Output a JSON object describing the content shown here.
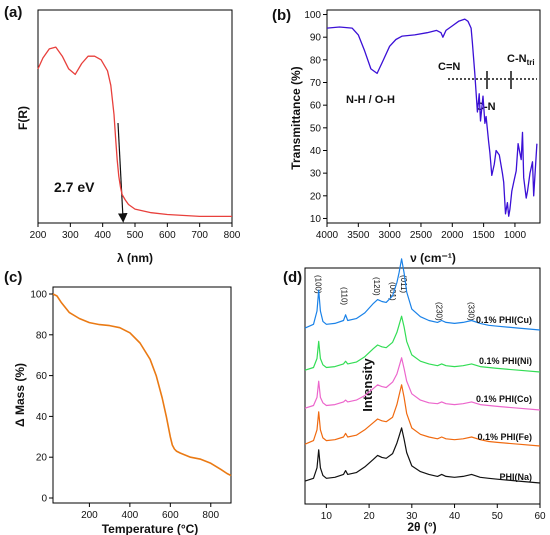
{
  "colors": {
    "panel_a": "#e8403c",
    "panel_b": "#3b10d6",
    "panel_c": "#ea7a14",
    "panel_d": [
      "#1a82e8",
      "#33dd55",
      "#ec66cc",
      "#f06a10",
      "#111111"
    ]
  },
  "panels": {
    "a": {
      "label": "(a)",
      "xlabel": "λ (nm)",
      "ylabel": "F(R)",
      "xticks": [
        "200",
        "300",
        "400",
        "500",
        "600",
        "700",
        "800"
      ],
      "annotation": "2.7 eV"
    },
    "b": {
      "label": "(b)",
      "xlabel": "ν (cm⁻¹)",
      "ylabel": "Transmittance (%)",
      "xticks": [
        "4000",
        "3500",
        "3000",
        "2500",
        "2000",
        "1500",
        "1000"
      ],
      "yticks": [
        "10",
        "20",
        "30",
        "40",
        "50",
        "60",
        "70",
        "80",
        "90",
        "100"
      ],
      "ann_nh_oh": "N-H / O-H",
      "ann_cn_double": "C=N",
      "ann_cn": "C-N",
      "ann_cntri_main": "C-N",
      "ann_cntri_sub": "tri"
    },
    "c": {
      "label": "(c)",
      "xlabel": "Temperature (°C)",
      "ylabel": "Δ Mass (%)",
      "xticks": [
        "200",
        "400",
        "600",
        "800"
      ],
      "yticks": [
        "0",
        "20",
        "40",
        "60",
        "80",
        "100"
      ]
    },
    "d": {
      "label": "(d)",
      "xlabel": "2θ (°)",
      "ylabel": "Intensity",
      "xticks": [
        "10",
        "20",
        "30",
        "40",
        "50",
        "60"
      ],
      "peaks": [
        "(100)",
        "(110)",
        "(120)",
        "(001)",
        "(011)",
        "(230)",
        "(330)"
      ],
      "legend": [
        "0.1% PHI(Cu)",
        "0.1% PHI(Ni)",
        "0.1% PHI(Co)",
        "0.1% PHI(Fe)",
        "PHI(Na)"
      ]
    }
  },
  "chart_data": [
    {
      "type": "line",
      "panel": "a",
      "xlabel": "λ (nm)",
      "ylabel": "F(R)",
      "xlim": [
        200,
        800
      ],
      "x": [
        200,
        215,
        235,
        255,
        275,
        295,
        315,
        335,
        355,
        375,
        395,
        415,
        425,
        435,
        440,
        445,
        450,
        455,
        460,
        470,
        480,
        500,
        550,
        600,
        700,
        800
      ],
      "y": [
        0.83,
        0.89,
        0.94,
        0.95,
        0.9,
        0.83,
        0.8,
        0.86,
        0.9,
        0.9,
        0.88,
        0.82,
        0.74,
        0.58,
        0.45,
        0.33,
        0.24,
        0.18,
        0.14,
        0.11,
        0.085,
        0.06,
        0.04,
        0.03,
        0.02,
        0.02
      ],
      "annotation": "2.7 eV"
    },
    {
      "type": "line",
      "panel": "b",
      "xlabel": "ν (cm⁻¹)",
      "ylabel": "Transmittance (%)",
      "xlim": [
        4000,
        600
      ],
      "ylim": [
        8,
        102
      ],
      "x": [
        4000,
        3800,
        3600,
        3500,
        3400,
        3300,
        3200,
        3100,
        3000,
        2900,
        2800,
        2600,
        2400,
        2250,
        2180,
        2150,
        2100,
        2000,
        1900,
        1800,
        1750,
        1700,
        1680,
        1640,
        1600,
        1570,
        1550,
        1510,
        1480,
        1460,
        1420,
        1400,
        1370,
        1330,
        1300,
        1250,
        1200,
        1180,
        1150,
        1120,
        1100,
        1080,
        1050,
        1020,
        980,
        950,
        900,
        880,
        860,
        820,
        800,
        760,
        720,
        700,
        650
      ],
      "y": [
        94,
        94.5,
        94,
        91,
        84,
        76,
        74,
        80,
        86,
        89,
        90.5,
        91,
        92,
        93,
        92,
        90,
        93,
        95,
        97,
        98,
        97,
        94,
        88,
        74,
        57,
        65,
        53,
        64,
        52,
        55,
        44,
        39,
        29,
        34,
        40,
        38,
        30,
        26,
        12,
        17,
        11,
        14,
        22,
        26,
        31,
        43,
        36,
        48,
        28,
        19,
        22,
        30,
        35,
        20,
        43
      ],
      "annotations": [
        "N-H / O-H",
        "C=N",
        "C-N",
        "C-Ntri"
      ]
    },
    {
      "type": "line",
      "panel": "c",
      "xlabel": "Temperature (°C)",
      "ylabel": "Δ Mass (%)",
      "xlim": [
        20,
        900
      ],
      "ylim": [
        0,
        100
      ],
      "x": [
        20,
        40,
        60,
        100,
        150,
        200,
        250,
        300,
        350,
        400,
        450,
        500,
        530,
        560,
        580,
        600,
        610,
        620,
        630,
        650,
        700,
        750,
        800,
        850,
        880,
        900
      ],
      "y": [
        100,
        99,
        96,
        91,
        88,
        86,
        85,
        84.5,
        83.5,
        81,
        76,
        68,
        60,
        49,
        40,
        30,
        26,
        24,
        23,
        22,
        20,
        19,
        17,
        14,
        12,
        11
      ]
    },
    {
      "type": "line",
      "panel": "d",
      "xlabel": "2θ (°)",
      "ylabel": "Intensity",
      "xlim": [
        5,
        60
      ],
      "x": [
        5,
        7,
        7.8,
        8.2,
        8.6,
        9.2,
        10,
        12,
        14,
        14.5,
        15,
        17,
        19,
        21,
        22,
        23,
        24,
        25.5,
        26.5,
        27,
        27.6,
        28.2,
        28.8,
        30,
        32,
        34,
        36,
        37,
        38,
        40,
        42,
        44,
        46,
        48,
        50,
        55,
        60
      ],
      "series": [
        {
          "name": "0.1% PHI(Cu)",
          "y": [
            0.2,
            0.6,
            2.0,
            4.2,
            2.0,
            0.9,
            0.6,
            0.7,
            1.0,
            1.6,
            1.0,
            1.2,
            1.8,
            2.8,
            3.2,
            3.0,
            2.9,
            3.6,
            5.0,
            6.0,
            7.5,
            6.0,
            4.0,
            2.2,
            1.4,
            1.0,
            0.8,
            1.0,
            0.8,
            0.7,
            0.8,
            1.0,
            0.7,
            0.5,
            0.4,
            0.2,
            0.0
          ]
        },
        {
          "name": "0.1% PHI(Ni)",
          "y": [
            0.2,
            0.5,
            1.5,
            3.4,
            1.5,
            0.8,
            0.5,
            0.6,
            0.9,
            1.2,
            0.9,
            1.1,
            1.7,
            2.6,
            3.0,
            2.8,
            2.7,
            3.3,
            4.4,
            5.2,
            6.2,
            5.0,
            3.4,
            1.9,
            1.2,
            0.9,
            0.7,
            0.9,
            0.7,
            0.6,
            0.7,
            0.9,
            0.6,
            0.5,
            0.4,
            0.2,
            0.0
          ]
        },
        {
          "name": "0.1% PHI(Co)",
          "y": [
            0.2,
            0.5,
            1.4,
            3.2,
            1.4,
            0.8,
            0.5,
            0.6,
            0.9,
            1.1,
            0.9,
            1.1,
            1.6,
            2.4,
            2.8,
            2.6,
            2.5,
            3.1,
            4.0,
            4.8,
            5.8,
            4.6,
            3.2,
            1.8,
            1.1,
            0.8,
            0.7,
            0.9,
            0.7,
            0.6,
            0.7,
            0.9,
            0.6,
            0.5,
            0.4,
            0.2,
            0.0
          ]
        },
        {
          "name": "0.1% PHI(Fe)",
          "y": [
            0.2,
            0.6,
            1.8,
            3.8,
            1.8,
            0.9,
            0.6,
            0.7,
            1.0,
            1.4,
            1.0,
            1.2,
            1.8,
            2.6,
            3.0,
            2.8,
            2.7,
            3.2,
            4.6,
            5.6,
            6.8,
            5.4,
            3.6,
            2.0,
            1.3,
            1.0,
            0.8,
            1.0,
            0.8,
            0.7,
            0.8,
            1.0,
            0.7,
            0.5,
            0.4,
            0.2,
            0.0
          ]
        },
        {
          "name": "PHI(Na)",
          "y": [
            0.2,
            0.5,
            1.6,
            3.5,
            1.6,
            0.8,
            0.5,
            0.6,
            0.9,
            1.3,
            0.9,
            1.1,
            1.7,
            2.5,
            2.9,
            2.7,
            2.6,
            3.1,
            4.2,
            4.9,
            5.8,
            4.6,
            3.2,
            1.8,
            1.2,
            0.9,
            0.7,
            0.9,
            0.7,
            0.6,
            0.7,
            0.9,
            0.6,
            0.5,
            0.4,
            0.2,
            0.0
          ]
        }
      ],
      "peak_labels": [
        "(100)",
        "(110)",
        "(120)",
        "(001)",
        "(011)",
        "(230)",
        "(330)"
      ]
    }
  ]
}
